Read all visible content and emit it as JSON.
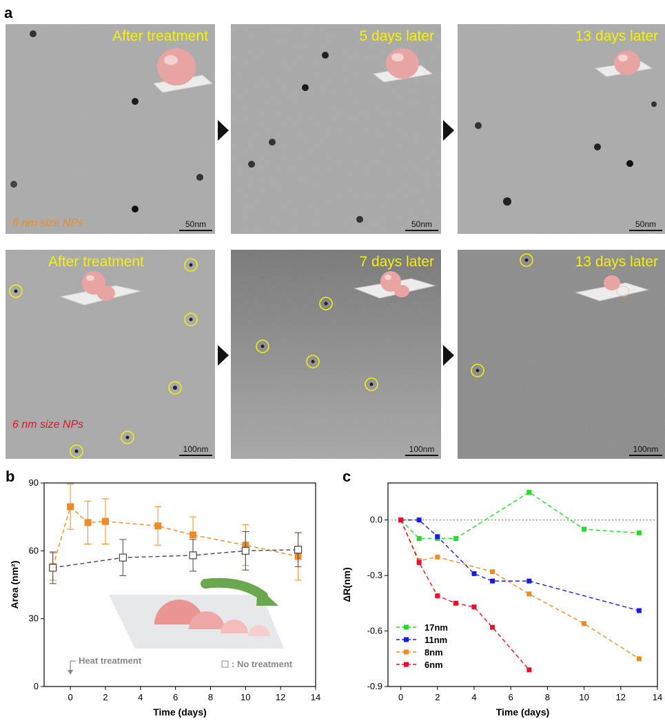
{
  "panel_a": {
    "letter": "a",
    "row1": {
      "size_label": "8 nm size NPs",
      "size_color": "#f08a24",
      "images": [
        {
          "label": "After treatment",
          "scale": "50nm"
        },
        {
          "label": "5 days later",
          "scale": "50nm"
        },
        {
          "label": "13 days later",
          "scale": "50nm"
        }
      ]
    },
    "row2": {
      "size_label": "6 nm size NPs",
      "size_color": "#e8102a",
      "images": [
        {
          "label": "After treatment",
          "scale": "100nm"
        },
        {
          "label": "7 days later",
          "scale": "100nm"
        },
        {
          "label": "13 days later",
          "scale": "100nm"
        }
      ]
    }
  },
  "chart_data": [
    {
      "panel": "b",
      "type": "line",
      "xlabel": "Time (days)",
      "ylabel": "Area (nm²)",
      "xlim": [
        -1.5,
        14
      ],
      "ylim": [
        0,
        90
      ],
      "xticks": [
        0,
        2,
        4,
        6,
        8,
        10,
        12,
        14
      ],
      "yticks": [
        0,
        30,
        60,
        90
      ],
      "annotations": {
        "heat_treatment": "Heat treatment",
        "no_treatment_legend": ": No treatment"
      },
      "series": [
        {
          "color": "#f08a24",
          "marker": "square-filled",
          "x": [
            -1,
            0,
            1,
            2,
            5,
            7,
            10,
            13
          ],
          "y": [
            53,
            79.5,
            72.5,
            73,
            71,
            67,
            62.5,
            57.5
          ],
          "err": [
            6,
            10,
            9.5,
            10,
            8.5,
            8,
            9,
            10.5
          ]
        },
        {
          "name": "No treatment",
          "color": "#444444",
          "marker": "square-open",
          "x": [
            -1,
            3,
            7,
            10,
            13
          ],
          "y": [
            52.5,
            57,
            58,
            60,
            60.5
          ],
          "err": [
            7,
            8,
            7,
            8.5,
            7.5
          ]
        }
      ]
    },
    {
      "panel": "c",
      "type": "line",
      "xlabel": "Time (days)",
      "ylabel": "ΔR(nm)",
      "xlim": [
        -0.7,
        14
      ],
      "ylim": [
        -0.9,
        0.2
      ],
      "xticks": [
        0,
        2,
        4,
        6,
        8,
        10,
        12,
        14
      ],
      "yticks": [
        0.0,
        -0.3,
        -0.6,
        -0.9
      ],
      "ytick_labels": [
        "0.0",
        "-0.3",
        "-0.6",
        "-0.9"
      ],
      "series": [
        {
          "name": "17nm",
          "color": "#22dd22",
          "x": [
            0,
            1,
            2,
            3,
            7,
            10,
            13
          ],
          "y": [
            0.0,
            -0.1,
            -0.1,
            -0.1,
            0.15,
            -0.05,
            -0.07
          ]
        },
        {
          "name": "11nm",
          "color": "#1a1ae0",
          "x": [
            0,
            1,
            2,
            4,
            5,
            7,
            13
          ],
          "y": [
            0.0,
            0.0,
            -0.09,
            -0.29,
            -0.33,
            -0.33,
            -0.49
          ]
        },
        {
          "name": "8nm",
          "color": "#f08a24",
          "x": [
            0,
            1,
            2,
            5,
            7,
            10,
            13
          ],
          "y": [
            0.0,
            -0.22,
            -0.2,
            -0.28,
            -0.4,
            -0.56,
            -0.75
          ]
        },
        {
          "name": "6nm",
          "color": "#e8102a",
          "x": [
            0,
            1,
            2,
            3,
            4,
            5,
            7
          ],
          "y": [
            0.0,
            -0.23,
            -0.41,
            -0.45,
            -0.47,
            -0.58,
            -0.81
          ]
        }
      ]
    }
  ]
}
